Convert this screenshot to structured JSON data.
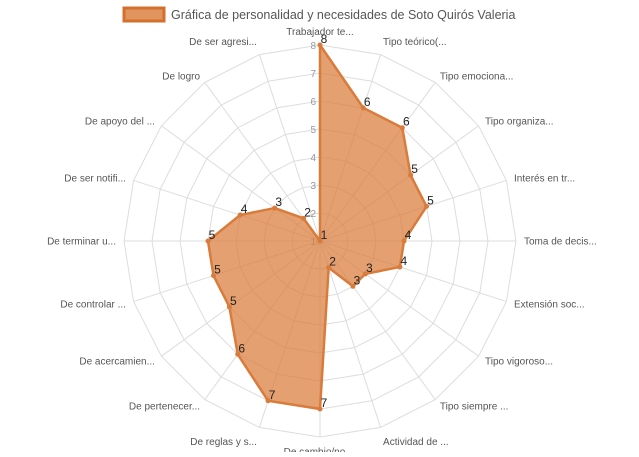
{
  "chart_data": {
    "type": "radar",
    "title": "",
    "categories": [
      "Trabajador te...",
      "Tipo teórico(...",
      "Tipo emociona...",
      "Tipo organiza...",
      "Interés en tr...",
      "Toma de decis...",
      "Extensión soc...",
      "Tipo vigoroso...",
      "Tipo siempre ...",
      "Actividad de ...",
      "De cambio/no ...",
      "De reglas y s...",
      "De pertenecer...",
      "De acercamien...",
      "De controlar ...",
      "De terminar u...",
      "De ser notifi...",
      "De apoyo del ...",
      "De logro",
      "De ser agresi..."
    ],
    "series": [
      {
        "name": "Gráfica de personalidad y necesidades de Soto Quirós Valeria",
        "values": [
          8,
          6,
          6,
          5,
          5,
          4,
          4,
          3,
          3,
          2,
          7,
          7,
          6,
          5,
          5,
          5,
          4,
          3,
          2,
          1
        ],
        "color": "#d97b3a",
        "fill": "rgba(217,123,58,0.72)"
      }
    ],
    "scale": {
      "min": 1,
      "max": 8,
      "step": 1,
      "ticks": [
        "1",
        "2",
        "3",
        "4",
        "5",
        "6",
        "7",
        "8"
      ]
    },
    "grid": true,
    "legend_position": "top"
  }
}
